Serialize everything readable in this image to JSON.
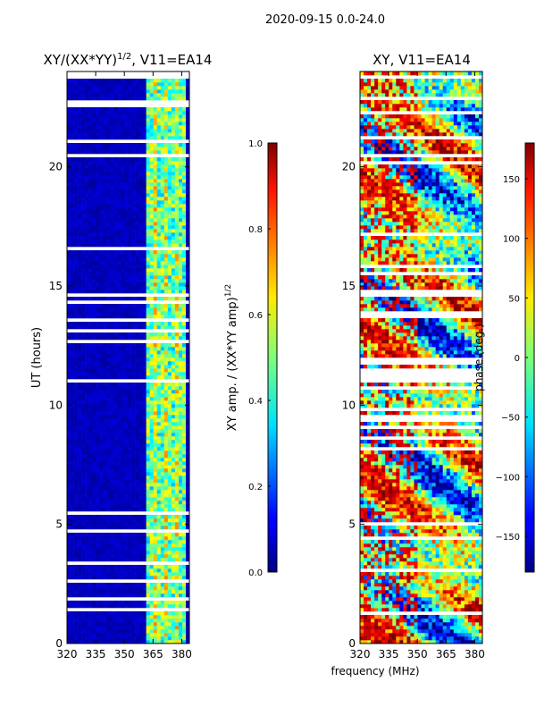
{
  "figure": {
    "suptitle": "2020-09-15 0.0-24.0",
    "xlabel_shared": "frequency (MHz)"
  },
  "chart_data": [
    {
      "type": "heatmap",
      "title_main": "XY/(XX*YY)",
      "title_sup": "1/2",
      "title_tail": ", V11=EA14",
      "ylabel": "UT (hours)",
      "xlim": [
        320,
        384
      ],
      "ylim": [
        0,
        24
      ],
      "xticks": [
        320,
        335,
        350,
        365,
        380
      ],
      "yticks": [
        0,
        5,
        10,
        15,
        20
      ],
      "colorbar": {
        "label_main": "XY amp. / (XX*YY amp)",
        "label_sup": "1/2",
        "range": [
          0.0,
          1.0
        ],
        "ticks": [
          "0.0",
          "0.2",
          "0.4",
          "0.6",
          "0.8",
          "1.0"
        ],
        "tick_values": [
          0.0,
          0.2,
          0.4,
          0.6,
          0.8,
          1.0
        ],
        "colormap": "jet"
      }
    },
    {
      "type": "heatmap",
      "title": "XY, V11=EA14",
      "ylabel": "",
      "xlim": [
        320,
        384
      ],
      "ylim": [
        0,
        24
      ],
      "xticks": [
        320,
        335,
        350,
        365,
        380
      ],
      "yticks": [
        0,
        5,
        10,
        15,
        20
      ],
      "colorbar": {
        "label": "phase (deg.)",
        "range": [
          -180,
          180
        ],
        "ticks": [
          "150",
          "100",
          "50",
          "0",
          "−50",
          "−100",
          "−150"
        ],
        "tick_values": [
          150,
          100,
          50,
          0,
          -50,
          -100,
          -150
        ],
        "colormap": "jet"
      }
    }
  ]
}
